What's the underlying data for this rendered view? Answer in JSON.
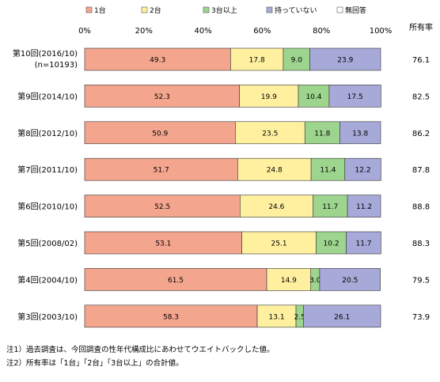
{
  "chart_data": {
    "type": "bar",
    "stacked": true,
    "orientation": "horizontal",
    "legend_position": "top",
    "grid": false,
    "xlim": [
      0,
      100
    ],
    "x_ticks": [
      "0%",
      "20%",
      "40%",
      "60%",
      "80%",
      "100%"
    ],
    "categories": [
      "第10回(2016/10)",
      "第9回(2014/10)",
      "第8回(2012/10)",
      "第7回(2011/10)",
      "第6回(2010/10)",
      "第5回(2008/02)",
      "第4回(2004/10)",
      "第3回(2003/10)"
    ],
    "first_category_note": "(n=10193)",
    "series": [
      {
        "name": "1台",
        "color": "#F4A58E",
        "values": [
          49.3,
          52.3,
          50.9,
          51.7,
          52.5,
          53.1,
          61.5,
          58.3
        ]
      },
      {
        "name": "2台",
        "color": "#FFF0A0",
        "values": [
          17.8,
          19.9,
          23.5,
          24.8,
          24.6,
          25.1,
          14.9,
          13.1
        ]
      },
      {
        "name": "3台以上",
        "color": "#9ED58E",
        "values": [
          9.0,
          10.4,
          11.8,
          11.4,
          11.7,
          10.2,
          3.0,
          2.5
        ]
      },
      {
        "name": "持っていない",
        "color": "#A7A9D9",
        "values": [
          23.9,
          17.5,
          13.8,
          12.2,
          11.2,
          11.7,
          20.5,
          26.1
        ]
      },
      {
        "name": "無回答",
        "color": "#FFFFFF",
        "values": [
          null,
          null,
          null,
          null,
          null,
          null,
          null,
          null
        ]
      }
    ],
    "ownership_rate_label": "所有率",
    "ownership_rate": [
      "76.1",
      "82.5",
      "86.2",
      "87.8",
      "88.8",
      "88.3",
      "79.5",
      "73.9"
    ]
  },
  "notes": [
    "注1）過去調査は、今回調査の性年代構成比にあわせてウエイトバックした値。",
    "注2）所有率は「1台」「2台」「3台以上」の合計値。"
  ]
}
